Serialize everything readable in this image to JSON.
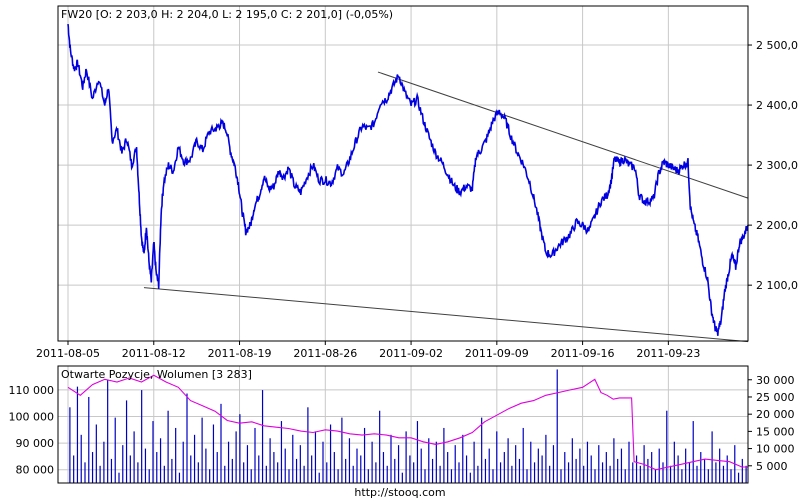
{
  "footer": "http://stooq.com",
  "colors": {
    "price": "#0000e0",
    "oi": "#e000e0",
    "volume": "#0000c0",
    "grid": "#c8c8c8",
    "trend": "#404040"
  },
  "chart_data": [
    {
      "type": "line",
      "title": "FW20 [O: 2 203,0  H: 2 204,0  L: 2 195,0  C: 2 201,0] (-0,05%)",
      "xlabel": "",
      "ylabel": "",
      "x_tick_labels": [
        "2011-08-05",
        "2011-08-12",
        "2011-08-19",
        "2011-08-26",
        "2011-09-02",
        "2011-09-09",
        "2011-09-16",
        "2011-09-23"
      ],
      "x_tick_days": [
        0,
        7,
        14,
        21,
        28,
        35,
        42,
        49
      ],
      "xlim_days": [
        0,
        55.5
      ],
      "y_tick_labels": [
        "2 500,0",
        "2 400,0",
        "2 300,0",
        "2 200,0",
        "2 100,0"
      ],
      "y_ticks": [
        2500,
        2400,
        2300,
        2200,
        2100
      ],
      "ylim": [
        2007,
        2565
      ],
      "grid": true,
      "series": [
        {
          "points": [
            [
              0,
              2535
            ],
            [
              0.2,
              2490
            ],
            [
              0.5,
              2460
            ],
            [
              0.8,
              2470
            ],
            [
              1.2,
              2430
            ],
            [
              1.5,
              2460
            ],
            [
              2,
              2410
            ],
            [
              2.5,
              2445
            ],
            [
              3,
              2400
            ],
            [
              3.3,
              2430
            ],
            [
              3.6,
              2340
            ],
            [
              4,
              2360
            ],
            [
              4.4,
              2320
            ],
            [
              4.8,
              2345
            ],
            [
              5.2,
              2300
            ],
            [
              5.6,
              2330
            ],
            [
              5.8,
              2250
            ],
            [
              6,
              2180
            ],
            [
              6.2,
              2150
            ],
            [
              6.4,
              2200
            ],
            [
              6.6,
              2140
            ],
            [
              6.8,
              2105
            ],
            [
              7,
              2170
            ],
            [
              7.2,
              2120
            ],
            [
              7.4,
              2100
            ],
            [
              7.6,
              2220
            ],
            [
              7.8,
              2270
            ],
            [
              8.2,
              2300
            ],
            [
              8.6,
              2290
            ],
            [
              9,
              2330
            ],
            [
              9.5,
              2305
            ],
            [
              10,
              2310
            ],
            [
              10.5,
              2340
            ],
            [
              11,
              2325
            ],
            [
              11.5,
              2355
            ],
            [
              12,
              2360
            ],
            [
              12.3,
              2365
            ],
            [
              12.6,
              2370
            ],
            [
              12.9,
              2360
            ],
            [
              13.3,
              2320
            ],
            [
              13.6,
              2300
            ],
            [
              13.9,
              2270
            ],
            [
              14.2,
              2225
            ],
            [
              14.5,
              2190
            ],
            [
              14.9,
              2200
            ],
            [
              15.2,
              2230
            ],
            [
              15.6,
              2250
            ],
            [
              16,
              2280
            ],
            [
              16.4,
              2260
            ],
            [
              16.8,
              2265
            ],
            [
              17.2,
              2290
            ],
            [
              17.6,
              2280
            ],
            [
              18,
              2295
            ],
            [
              18.5,
              2265
            ],
            [
              19,
              2255
            ],
            [
              19.5,
              2280
            ],
            [
              20,
              2300
            ],
            [
              20.5,
              2275
            ],
            [
              21,
              2275
            ],
            [
              21.5,
              2270
            ],
            [
              22,
              2295
            ],
            [
              22.5,
              2285
            ],
            [
              23,
              2310
            ],
            [
              23.5,
              2340
            ],
            [
              24,
              2365
            ],
            [
              24.5,
              2360
            ],
            [
              25,
              2370
            ],
            [
              25.5,
              2405
            ],
            [
              26,
              2410
            ],
            [
              26.5,
              2430
            ],
            [
              27,
              2450
            ],
            [
              27.5,
              2420
            ],
            [
              28,
              2400
            ],
            [
              28.5,
              2410
            ],
            [
              29,
              2375
            ],
            [
              29.5,
              2345
            ],
            [
              30,
              2320
            ],
            [
              30.5,
              2305
            ],
            [
              31,
              2285
            ],
            [
              31.5,
              2265
            ],
            [
              32,
              2255
            ],
            [
              32.5,
              2265
            ],
            [
              33,
              2260
            ],
            [
              33.3,
              2315
            ],
            [
              33.7,
              2325
            ],
            [
              34.2,
              2345
            ],
            [
              34.7,
              2375
            ],
            [
              35.2,
              2390
            ],
            [
              35.7,
              2375
            ],
            [
              36.2,
              2345
            ],
            [
              36.7,
              2320
            ],
            [
              37.2,
              2300
            ],
            [
              37.7,
              2270
            ],
            [
              38.2,
              2230
            ],
            [
              38.6,
              2190
            ],
            [
              39,
              2155
            ],
            [
              39.5,
              2150
            ],
            [
              40,
              2165
            ],
            [
              40.5,
              2175
            ],
            [
              41,
              2185
            ],
            [
              41.5,
              2205
            ],
            [
              42,
              2200
            ],
            [
              42.5,
              2190
            ],
            [
              43,
              2215
            ],
            [
              43.5,
              2240
            ],
            [
              44,
              2250
            ],
            [
              44.3,
              2270
            ],
            [
              44.6,
              2310
            ],
            [
              45,
              2305
            ],
            [
              45.4,
              2310
            ],
            [
              45.8,
              2300
            ],
            [
              46.3,
              2295
            ],
            [
              46.6,
              2250
            ],
            [
              47,
              2240
            ],
            [
              47.4,
              2240
            ],
            [
              47.8,
              2245
            ],
            [
              48.2,
              2285
            ],
            [
              48.6,
              2305
            ],
            [
              49,
              2300
            ],
            [
              49.4,
              2295
            ],
            [
              49.8,
              2290
            ],
            [
              50.2,
              2300
            ],
            [
              50.6,
              2305
            ],
            [
              50.8,
              2230
            ],
            [
              51.1,
              2200
            ],
            [
              51.4,
              2180
            ],
            [
              51.8,
              2140
            ],
            [
              52.2,
              2110
            ],
            [
              52.5,
              2060
            ],
            [
              52.8,
              2030
            ],
            [
              53,
              2020
            ],
            [
              53.3,
              2040
            ],
            [
              53.6,
              2090
            ],
            [
              53.9,
              2120
            ],
            [
              54.2,
              2150
            ],
            [
              54.5,
              2130
            ],
            [
              54.8,
              2170
            ],
            [
              55.1,
              2180
            ],
            [
              55.5,
              2200
            ]
          ]
        }
      ],
      "trendlines": [
        {
          "from": [
            25.3,
            2455
          ],
          "to": [
            55.5,
            2245
          ]
        },
        {
          "from": [
            6.2,
            2096
          ],
          "to": [
            55.5,
            2006
          ]
        }
      ]
    },
    {
      "type": "line",
      "title": "Otwarte Pozycje, Wolumen [3 283]",
      "xlabel": "",
      "ylabel": "",
      "left_y_tick_labels": [
        "110 000",
        "100 000",
        "90 000",
        "80 000"
      ],
      "left_y_ticks": [
        110000,
        100000,
        90000,
        80000
      ],
      "left_ylim": [
        75000,
        119000
      ],
      "right_y_tick_labels": [
        "30 000",
        "25 000",
        "20 000",
        "15 000",
        "10 000",
        "5 000"
      ],
      "right_y_ticks": [
        30000,
        25000,
        20000,
        15000,
        10000,
        5000
      ],
      "right_ylim": [
        0,
        34000
      ],
      "grid": true,
      "series": [
        {
          "name": "Otwarte Pozycje",
          "axis": "left",
          "points": [
            [
              0,
              111000
            ],
            [
              1,
              108000
            ],
            [
              2,
              112000
            ],
            [
              3,
              114000
            ],
            [
              4,
              113000
            ],
            [
              5,
              114500
            ],
            [
              6,
              113000
            ],
            [
              7,
              115500
            ],
            [
              8,
              113000
            ],
            [
              9,
              111000
            ],
            [
              10,
              106000
            ],
            [
              11,
              104000
            ],
            [
              12,
              102000
            ],
            [
              13,
              98500
            ],
            [
              14,
              97500
            ],
            [
              15,
              98000
            ],
            [
              16,
              96500
            ],
            [
              17,
              96000
            ],
            [
              18,
              95500
            ],
            [
              19,
              94500
            ],
            [
              20,
              94000
            ],
            [
              21,
              95000
            ],
            [
              22,
              94500
            ],
            [
              23,
              93500
            ],
            [
              24,
              93000
            ],
            [
              25,
              93500
            ],
            [
              26,
              93000
            ],
            [
              27,
              92000
            ],
            [
              28,
              92000
            ],
            [
              29,
              90500
            ],
            [
              30,
              89500
            ],
            [
              31,
              90500
            ],
            [
              32,
              92000
            ],
            [
              33,
              94000
            ],
            [
              34,
              98000
            ],
            [
              35,
              100500
            ],
            [
              36,
              103000
            ],
            [
              37,
              105000
            ],
            [
              38,
              106000
            ],
            [
              39,
              108000
            ],
            [
              40,
              109000
            ],
            [
              41,
              110000
            ],
            [
              42,
              111000
            ],
            [
              43,
              114000
            ],
            [
              43.5,
              109000
            ],
            [
              44,
              108000
            ],
            [
              44.5,
              106500
            ],
            [
              45,
              107000
            ],
            [
              46,
              107000
            ],
            [
              46.2,
              83000
            ],
            [
              47,
              82000
            ],
            [
              48,
              80000
            ],
            [
              49,
              81000
            ],
            [
              50,
              82000
            ],
            [
              51,
              83000
            ],
            [
              52,
              84000
            ],
            [
              53,
              83500
            ],
            [
              54,
              83000
            ],
            [
              55,
              81000
            ],
            [
              55.5,
              81000
            ]
          ]
        }
      ],
      "volume_bars": [
        22000,
        8000,
        28000,
        14000,
        6000,
        25000,
        9000,
        17000,
        5000,
        12000,
        30000,
        7000,
        19000,
        3000,
        11000,
        24000,
        8000,
        15000,
        6000,
        27000,
        10000,
        4000,
        18000,
        9000,
        13000,
        5000,
        21000,
        7000,
        16000,
        3000,
        12000,
        26000,
        8000,
        14000,
        6000,
        19000,
        10000,
        4000,
        17000,
        9000,
        23000,
        5000,
        12000,
        7000,
        15000,
        20000,
        6000,
        11000,
        4000,
        16000,
        8000,
        27000,
        5000,
        13000,
        9000,
        6000,
        18000,
        10000,
        4000,
        14000,
        7000,
        11000,
        5000,
        22000,
        8000,
        15000,
        3000,
        12000,
        6000,
        17000,
        9000,
        4000,
        19000,
        7000,
        13000,
        5000,
        10000,
        8000,
        16000,
        4000,
        12000,
        6000,
        21000,
        9000,
        5000,
        14000,
        7000,
        11000,
        3000,
        15000,
        8000,
        6000,
        18000,
        10000,
        4000,
        13000,
        7000,
        12000,
        5000,
        16000,
        9000,
        4000,
        11000,
        6000,
        14000,
        8000,
        3000,
        12000,
        5000,
        19000,
        7000,
        10000,
        4000,
        15000,
        6000,
        9000,
        13000,
        5000,
        11000,
        7000,
        16000,
        4000,
        12000,
        6000,
        10000,
        8000,
        14000,
        5000,
        11000,
        33000,
        4000,
        9000,
        6000,
        13000,
        7000,
        10000,
        5000,
        12000,
        8000,
        4000,
        11000,
        6000,
        9000,
        5000,
        13000,
        7000,
        10000,
        4000,
        12000,
        6000,
        8000,
        5000,
        11000,
        7000,
        9000,
        4000,
        10000,
        6000,
        21000,
        5000,
        12000,
        8000,
        4000,
        10000,
        6000,
        18000,
        5000,
        9000,
        7000,
        4000,
        15000,
        6000,
        10000,
        5000,
        8000,
        4000,
        11000,
        3000,
        7000,
        5000
      ]
    }
  ]
}
